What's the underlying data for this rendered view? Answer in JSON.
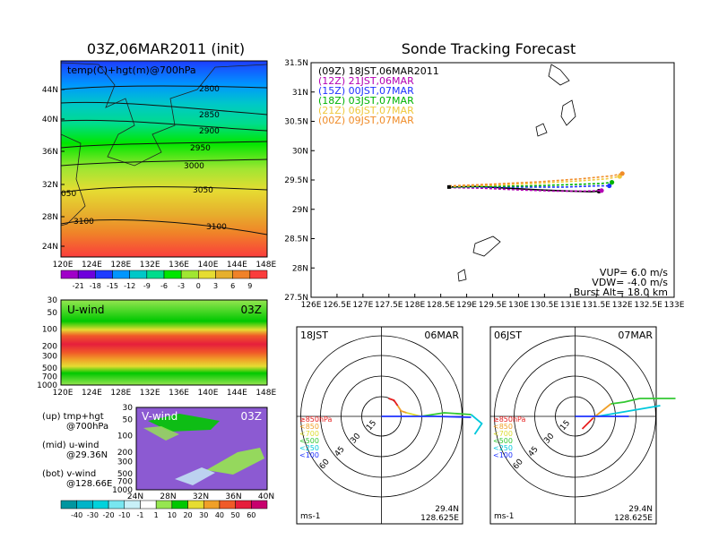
{
  "left_title": "03Z,06MAR2011 (init)",
  "right_title": "Sonde Tracking Forecast",
  "temp_panel": {
    "label": "temp(C)+hgt(m)@700hPa",
    "lat_ticks": [
      "44N",
      "40N",
      "36N",
      "32N",
      "28N",
      "24N"
    ],
    "lon_ticks": [
      "120E",
      "124E",
      "128E",
      "132E",
      "136E",
      "140E",
      "144E",
      "148E"
    ],
    "contour_labels": [
      "2800",
      "2850",
      "2900",
      "2950",
      "3000",
      "3050",
      "3100",
      "3100",
      "050"
    ]
  },
  "temp_colorbar": {
    "labels": [
      "-21",
      "-18",
      "-15",
      "-12",
      "-9",
      "-6",
      "-3",
      "0",
      "3",
      "6",
      "9"
    ],
    "colors": [
      "#a000c8",
      "#6e00dc",
      "#1e3cff",
      "#0096ff",
      "#00c8c8",
      "#00dc8c",
      "#00e600",
      "#a0e632",
      "#e6dc32",
      "#e6af2d",
      "#f08228",
      "#fa3c3c"
    ]
  },
  "u_panel": {
    "label": "U-wind",
    "time": "03Z",
    "p_ticks": [
      "30",
      "50",
      "100",
      "200",
      "300",
      "500",
      "700",
      "1000"
    ],
    "lon_ticks": [
      "120E",
      "124E",
      "128E",
      "132E",
      "136E",
      "140E",
      "144E",
      "148E"
    ]
  },
  "v_panel": {
    "label": "V-wind",
    "time": "03Z",
    "p_ticks": [
      "30",
      "50",
      "100",
      "200",
      "300",
      "500",
      "700",
      "1000"
    ],
    "lat_ticks": [
      "24N",
      "28N",
      "32N",
      "36N",
      "40N"
    ]
  },
  "legend_notes": [
    {
      "a": "(up) tmp+hgt",
      "b": "@700hPa"
    },
    {
      "a": "(mid) u-wind",
      "b": "@29.36N"
    },
    {
      "a": "(bot) v-wind",
      "b": "@128.66E"
    }
  ],
  "wind_colorbar": {
    "labels": [
      "-40",
      "-30",
      "-20",
      "-10",
      "-1",
      "1",
      "10",
      "20",
      "30",
      "40",
      "50",
      "60"
    ],
    "colors": [
      "#0096a0",
      "#00b4c8",
      "#00d2dc",
      "#78e6f0",
      "#c8f0f8",
      "#ffffff",
      "#96e650",
      "#00c800",
      "#e6dc32",
      "#f0a028",
      "#f05a28",
      "#e61e3c",
      "#c8006e"
    ]
  },
  "track_legend": [
    {
      "text": "(09Z) 18JST,06MAR2011",
      "color": "#000000"
    },
    {
      "text": "(12Z) 21JST,06MAR",
      "color": "#b400b4"
    },
    {
      "text": "(15Z) 00JST,07MAR",
      "color": "#1e32ff"
    },
    {
      "text": "(18Z) 03JST,07MAR",
      "color": "#00b400"
    },
    {
      "text": "(21Z) 06JST,07MAR",
      "color": "#f0c83c"
    },
    {
      "text": "(00Z) 09JST,07MAR",
      "color": "#f08c28"
    }
  ],
  "track_params": [
    "VUP= 6.0 m/s",
    "VDW= -4.0 m/s",
    "Burst Alt= 18.0 km"
  ],
  "chart_data": {
    "type": "line",
    "title": "Sonde Tracking Forecast",
    "xlim": [
      126,
      133
    ],
    "ylim": [
      27.5,
      31.5
    ],
    "x_ticks": [
      "126E",
      "126.5E",
      "127E",
      "127.5E",
      "128E",
      "128.5E",
      "129E",
      "129.5E",
      "130E",
      "130.5E",
      "131E",
      "131.5E",
      "132E",
      "132.5E",
      "133E"
    ],
    "y_ticks": [
      "31.5N",
      "31N",
      "30.5N",
      "30N",
      "29.5N",
      "29N",
      "28.5N",
      "28N",
      "27.5N"
    ],
    "series": [
      {
        "name": "(09Z) 18JST,06MAR2011",
        "color": "#000000",
        "x": [
          128.66,
          129.2,
          129.8,
          130.4,
          131.0,
          131.4,
          131.55
        ],
        "y": [
          29.38,
          29.39,
          29.36,
          29.33,
          29.31,
          29.3,
          29.31
        ]
      },
      {
        "name": "(12Z) 21JST,06MAR",
        "color": "#b400b4",
        "x": [
          128.66,
          129.3,
          130.0,
          130.7,
          131.3,
          131.6
        ],
        "y": [
          29.37,
          29.36,
          29.33,
          29.31,
          29.31,
          29.32
        ]
      },
      {
        "name": "(15Z) 00JST,07MAR",
        "color": "#1e32ff",
        "x": [
          128.66,
          129.4,
          130.2,
          130.9,
          131.5,
          131.75
        ],
        "y": [
          29.38,
          29.38,
          29.38,
          29.38,
          29.4,
          29.4
        ]
      },
      {
        "name": "(18Z) 03JST,07MAR",
        "color": "#00b400",
        "x": [
          128.66,
          129.4,
          130.2,
          131.0,
          131.6,
          131.8
        ],
        "y": [
          29.38,
          29.39,
          29.4,
          29.42,
          29.44,
          29.46
        ]
      },
      {
        "name": "(21Z) 06JST,07MAR",
        "color": "#f0c83c",
        "x": [
          128.66,
          129.5,
          130.3,
          131.1,
          131.7,
          131.95
        ],
        "y": [
          29.39,
          29.41,
          29.44,
          29.48,
          29.52,
          29.56
        ]
      },
      {
        "name": "(00Z) 09JST,07MAR",
        "color": "#f08c28",
        "x": [
          128.66,
          129.5,
          130.4,
          131.2,
          131.8,
          132.0
        ],
        "y": [
          29.4,
          29.43,
          29.47,
          29.52,
          29.57,
          29.61
        ]
      }
    ]
  },
  "hodograph_left": {
    "tl": "18JST",
    "tr": "06MAR",
    "lat": "29.4N",
    "lon": "128.625E",
    "unit": "ms-1",
    "ring_labels": [
      "15",
      "30",
      "45",
      "60"
    ],
    "legend": [
      {
        "text": "≥850hPa",
        "color": "#e61e1e"
      },
      {
        "text": "<850",
        "color": "#f0a028"
      },
      {
        "text": "<700",
        "color": "#dcdc32"
      },
      {
        "text": "<500",
        "color": "#32c832"
      },
      {
        "text": "<250",
        "color": "#00c8dc"
      },
      {
        "text": "<100",
        "color": "#1e32ff"
      }
    ]
  },
  "hodograph_right": {
    "tl": "06JST",
    "tr": "07MAR",
    "lat": "29.4N",
    "lon": "128.625E",
    "unit": "ms-1",
    "ring_labels": [
      "15",
      "30",
      "45",
      "60"
    ],
    "legend": [
      {
        "text": "≥850hPa",
        "color": "#e61e1e"
      },
      {
        "text": "<850",
        "color": "#f0a028"
      },
      {
        "text": "<700",
        "color": "#dcdc32"
      },
      {
        "text": "<500",
        "color": "#32c832"
      },
      {
        "text": "<250",
        "color": "#00c8dc"
      },
      {
        "text": "<100",
        "color": "#1e32ff"
      }
    ]
  }
}
